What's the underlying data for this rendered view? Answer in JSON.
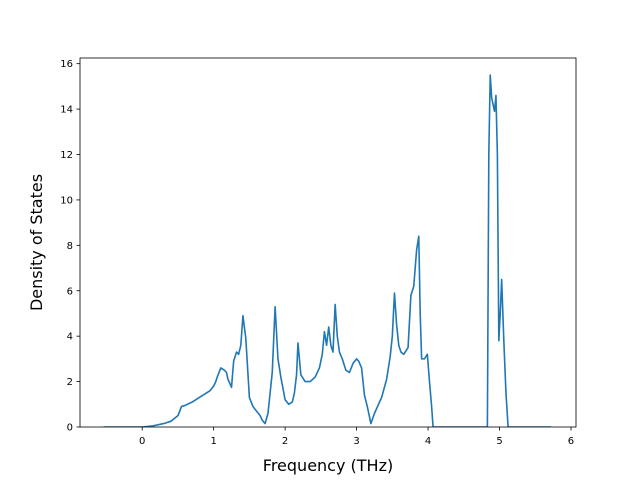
{
  "chart_data": {
    "type": "line",
    "title": "",
    "xlabel": "Frequency (THz)",
    "ylabel": "Density of States",
    "xlim": [
      -0.87,
      6.07
    ],
    "ylim": [
      0,
      16.25
    ],
    "xticks": [
      0,
      1,
      2,
      3,
      4,
      5,
      6
    ],
    "xtick_labels": [
      "0",
      "1",
      "2",
      "3",
      "4",
      "5",
      "6"
    ],
    "yticks": [
      0,
      2,
      4,
      6,
      8,
      10,
      12,
      14,
      16
    ],
    "ytick_labels": [
      "0",
      "2",
      "4",
      "6",
      "8",
      "10",
      "12",
      "14",
      "16"
    ],
    "grid": false,
    "legend": "none",
    "colors": {
      "line": "#1f77b4",
      "axes": "#000000",
      "background": "#ffffff"
    },
    "series": [
      {
        "x": [
          -0.54,
          0.0,
          0.15,
          0.3,
          0.4,
          0.5,
          0.55,
          0.6,
          0.7,
          0.8,
          0.9,
          0.95,
          1.0,
          1.03,
          1.05,
          1.1,
          1.15,
          1.18,
          1.2,
          1.25,
          1.28,
          1.32,
          1.35,
          1.38,
          1.41,
          1.45,
          1.5,
          1.55,
          1.6,
          1.65,
          1.68,
          1.72,
          1.76,
          1.79,
          1.82,
          1.86,
          1.9,
          1.94,
          2.0,
          2.05,
          2.1,
          2.13,
          2.16,
          2.18,
          2.22,
          2.28,
          2.35,
          2.42,
          2.48,
          2.52,
          2.55,
          2.58,
          2.61,
          2.64,
          2.67,
          2.7,
          2.73,
          2.76,
          2.8,
          2.85,
          2.9,
          2.95,
          3.0,
          3.03,
          3.07,
          3.11,
          3.15,
          3.2,
          3.25,
          3.35,
          3.42,
          3.47,
          3.5,
          3.53,
          3.56,
          3.59,
          3.62,
          3.66,
          3.72,
          3.76,
          3.8,
          3.84,
          3.87,
          3.89,
          3.91,
          3.95,
          3.99,
          4.02,
          4.05,
          4.07,
          4.09,
          4.5,
          4.83,
          4.85,
          4.87,
          4.89,
          4.91,
          4.93,
          4.95,
          4.97,
          4.99,
          5.01,
          5.03,
          5.06,
          5.09,
          5.12,
          5.15,
          5.18,
          5.5,
          5.72
        ],
        "y": [
          0.0,
          0.0,
          0.05,
          0.15,
          0.25,
          0.5,
          0.9,
          0.95,
          1.1,
          1.3,
          1.5,
          1.6,
          1.8,
          2.0,
          2.2,
          2.6,
          2.5,
          2.4,
          2.1,
          1.75,
          2.9,
          3.3,
          3.2,
          3.6,
          4.9,
          3.9,
          1.3,
          0.9,
          0.7,
          0.5,
          0.3,
          0.15,
          0.6,
          1.5,
          2.4,
          5.3,
          3.0,
          2.2,
          1.2,
          1.0,
          1.1,
          1.5,
          2.3,
          3.7,
          2.3,
          2.0,
          2.0,
          2.2,
          2.6,
          3.2,
          4.2,
          3.6,
          4.4,
          3.6,
          3.3,
          5.4,
          4.0,
          3.3,
          3.0,
          2.5,
          2.4,
          2.8,
          3.0,
          2.9,
          2.6,
          1.4,
          0.9,
          0.15,
          0.6,
          1.3,
          2.1,
          3.1,
          4.0,
          5.9,
          4.5,
          3.6,
          3.3,
          3.2,
          3.5,
          5.8,
          6.2,
          7.8,
          8.4,
          5.0,
          3.0,
          3.0,
          3.2,
          2.0,
          0.9,
          0.0,
          0.0,
          0.0,
          0.0,
          12.0,
          15.5,
          14.5,
          14.2,
          13.9,
          14.6,
          12.0,
          3.8,
          5.0,
          6.5,
          3.8,
          1.5,
          0.0,
          0.0,
          0.0,
          0.0,
          0.0
        ]
      }
    ]
  }
}
